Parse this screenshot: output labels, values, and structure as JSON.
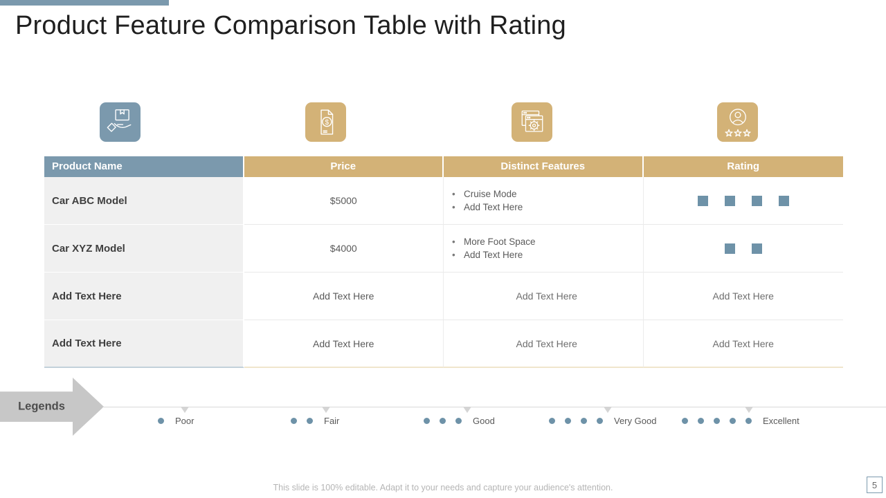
{
  "slide": {
    "title": "Product Feature Comparison Table with Rating",
    "footer": "This slide is 100% editable. Adapt it to your needs and capture your audience's attention.",
    "page_number": "5"
  },
  "icons": [
    {
      "name": "product-delivery-icon",
      "color": "#7b99ad"
    },
    {
      "name": "price-tag-icon",
      "color": "#d3b277"
    },
    {
      "name": "distinct-features-icon",
      "color": "#d3b277"
    },
    {
      "name": "customer-rating-icon",
      "color": "#d3b277"
    }
  ],
  "table": {
    "headers": [
      "Product Name",
      "Price",
      "Distinct Features",
      "Rating"
    ],
    "rows": [
      {
        "product": "Car ABC Model",
        "price": "$5000",
        "features": [
          "Cruise Mode",
          "Add Text Here"
        ],
        "rating": 4
      },
      {
        "product": "Car XYZ Model",
        "price": "$4000",
        "features": [
          "More Foot Space",
          "Add Text Here"
        ],
        "rating": 2
      },
      {
        "product": "Add Text Here",
        "price": "Add Text Here",
        "features": "Add Text Here",
        "rating": "Add Text Here"
      },
      {
        "product": "Add Text Here",
        "price": "Add Text Here",
        "features": "Add Text Here",
        "rating": "Add Text Here"
      }
    ]
  },
  "legend": {
    "label": "Legends",
    "items": [
      {
        "label": "Poor",
        "dots": 1
      },
      {
        "label": "Fair",
        "dots": 2
      },
      {
        "label": "Good",
        "dots": 3
      },
      {
        "label": "Very Good",
        "dots": 4
      },
      {
        "label": "Excellent",
        "dots": 5
      }
    ]
  },
  "colors": {
    "accent_blue": "#7b99ad",
    "accent_tan": "#d3b277",
    "rating_square": "#6e92a8",
    "legend_dot": "#6e92a8",
    "header_text": "#ffffff"
  }
}
